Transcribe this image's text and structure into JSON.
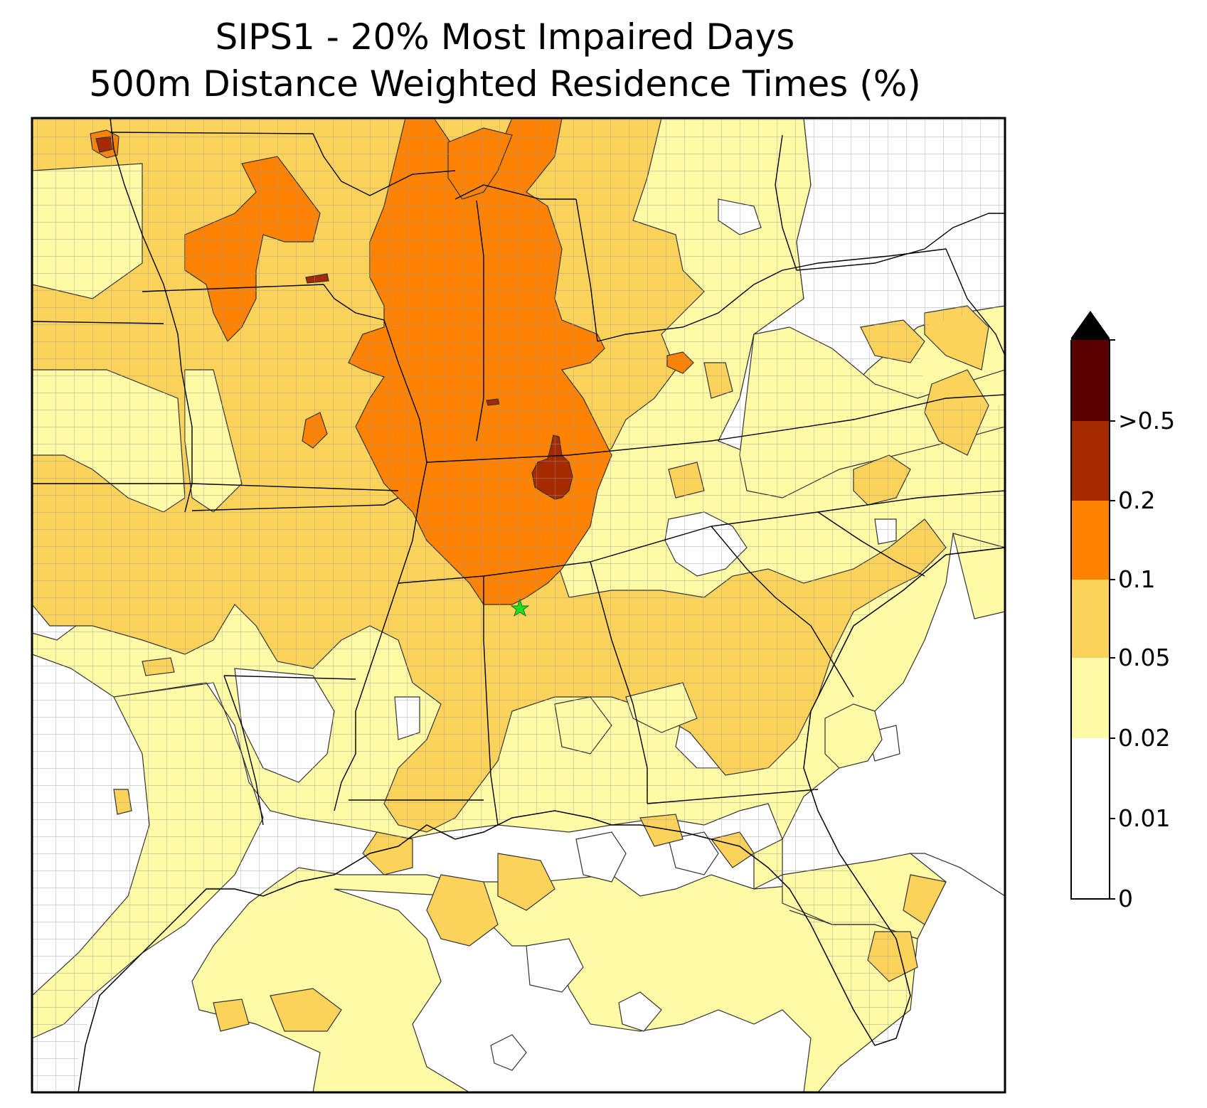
{
  "title": {
    "line1": "SIPS1 - 20% Most Impaired Days",
    "line2": "500m Distance Weighted Residence Times (%)"
  },
  "marker": {
    "symbol": "star",
    "color": "#22dd22"
  },
  "colorbar": {
    "extend": "max",
    "labels": [
      "0",
      "0.01",
      "0.02",
      "0.05",
      "0.1",
      "0.2",
      ">0.5"
    ],
    "colors": [
      "#ffffff",
      "#fffaa6",
      "#fcd35a",
      "#ff8200",
      "#a52a00",
      "#5a0000",
      "#000000"
    ]
  },
  "map": {
    "background_color": "#ffffff",
    "state_border_color": "#000000",
    "county_border_color": "#9a9a9a"
  }
}
